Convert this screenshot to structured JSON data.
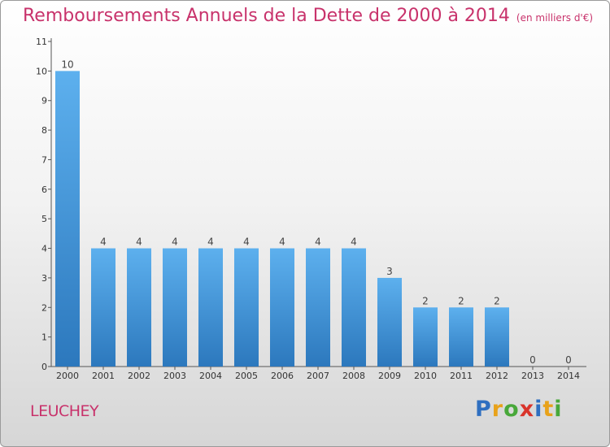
{
  "title": "Remboursements Annuels de la Dette de 2000 à 2014",
  "unit": "(en milliers d'€)",
  "town": "LEUCHEY",
  "logo": {
    "letters": [
      {
        "ch": "P",
        "color": "#2f6fc0"
      },
      {
        "ch": "r",
        "color": "#e8a21a"
      },
      {
        "ch": "o",
        "color": "#48a83a"
      },
      {
        "ch": "x",
        "color": "#d9342b"
      },
      {
        "ch": "i",
        "color": "#2f6fc0"
      },
      {
        "ch": "t",
        "color": "#e8a21a"
      },
      {
        "ch": "i",
        "color": "#48a83a"
      }
    ]
  },
  "chart_data": {
    "type": "bar",
    "title": "Remboursements Annuels de la Dette de 2000 à 2014",
    "ylabel": "",
    "xlabel": "",
    "categories": [
      "2000",
      "2001",
      "2002",
      "2003",
      "2004",
      "2005",
      "2006",
      "2007",
      "2008",
      "2009",
      "2010",
      "2011",
      "2012",
      "2013",
      "2014"
    ],
    "values": [
      10,
      4,
      4,
      4,
      4,
      4,
      4,
      4,
      4,
      3,
      2,
      2,
      2,
      0,
      0
    ],
    "ylim": [
      0,
      11
    ],
    "yticks": [
      0,
      1,
      2,
      3,
      4,
      5,
      6,
      7,
      8,
      9,
      10,
      11
    ],
    "bar_color": "#3c93d6",
    "grid": false
  }
}
